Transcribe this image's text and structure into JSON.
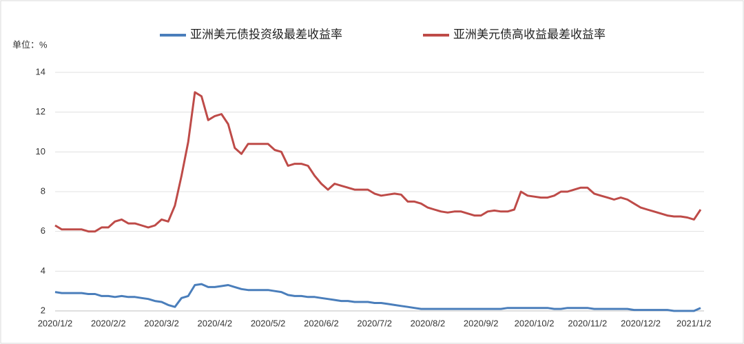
{
  "chart_data": {
    "type": "line",
    "y_unit_label": "单位：%",
    "categories": [
      "2020/1/2",
      null,
      null,
      null,
      null,
      null,
      null,
      null,
      "2020/2/2",
      null,
      null,
      null,
      null,
      null,
      null,
      null,
      "2020/3/2",
      null,
      null,
      null,
      null,
      null,
      null,
      null,
      "2020/4/2",
      null,
      null,
      null,
      null,
      null,
      null,
      null,
      "2020/5/2",
      null,
      null,
      null,
      null,
      null,
      null,
      null,
      "2020/6/2",
      null,
      null,
      null,
      null,
      null,
      null,
      null,
      "2020/7/2",
      null,
      null,
      null,
      null,
      null,
      null,
      null,
      "2020/8/2",
      null,
      null,
      null,
      null,
      null,
      null,
      null,
      "2020/9/2",
      null,
      null,
      null,
      null,
      null,
      null,
      null,
      "2020/10/2",
      null,
      null,
      null,
      null,
      null,
      null,
      null,
      "2020/11/2",
      null,
      null,
      null,
      null,
      null,
      null,
      null,
      "2020/12/2",
      null,
      null,
      null,
      null,
      null,
      null,
      null,
      "2021/1/2",
      null
    ],
    "series": [
      {
        "name": "亚洲美元债投资级最差收益率",
        "color": "#4a7ebb",
        "values": [
          2.95,
          2.9,
          2.9,
          2.9,
          2.9,
          2.85,
          2.85,
          2.75,
          2.75,
          2.7,
          2.75,
          2.7,
          2.7,
          2.65,
          2.6,
          2.5,
          2.45,
          2.3,
          2.2,
          2.65,
          2.75,
          3.3,
          3.35,
          3.2,
          3.2,
          3.25,
          3.3,
          3.2,
          3.1,
          3.05,
          3.05,
          3.05,
          3.05,
          3.0,
          2.95,
          2.8,
          2.75,
          2.75,
          2.7,
          2.7,
          2.65,
          2.6,
          2.55,
          2.5,
          2.5,
          2.45,
          2.45,
          2.45,
          2.4,
          2.4,
          2.35,
          2.3,
          2.25,
          2.2,
          2.15,
          2.1,
          2.1,
          2.1,
          2.1,
          2.1,
          2.1,
          2.1,
          2.1,
          2.1,
          2.1,
          2.1,
          2.1,
          2.1,
          2.15,
          2.15,
          2.15,
          2.15,
          2.15,
          2.15,
          2.15,
          2.1,
          2.1,
          2.15,
          2.15,
          2.15,
          2.15,
          2.1,
          2.1,
          2.1,
          2.1,
          2.1,
          2.1,
          2.05,
          2.05,
          2.05,
          2.05,
          2.05,
          2.05,
          2.0,
          2.0,
          2.0,
          2.0,
          2.15
        ]
      },
      {
        "name": "亚洲美元债高收益最差收益率",
        "color": "#be4b48",
        "values": [
          6.3,
          6.1,
          6.1,
          6.1,
          6.1,
          6.0,
          6.0,
          6.2,
          6.2,
          6.5,
          6.6,
          6.4,
          6.4,
          6.3,
          6.2,
          6.3,
          6.6,
          6.5,
          7.3,
          8.8,
          10.5,
          13.0,
          12.8,
          11.6,
          11.8,
          11.9,
          11.4,
          10.2,
          9.9,
          10.4,
          10.4,
          10.4,
          10.4,
          10.1,
          10.0,
          9.3,
          9.4,
          9.4,
          9.3,
          8.8,
          8.4,
          8.1,
          8.4,
          8.3,
          8.2,
          8.1,
          8.1,
          8.1,
          7.9,
          7.8,
          7.85,
          7.9,
          7.85,
          7.5,
          7.5,
          7.4,
          7.2,
          7.1,
          7.0,
          6.95,
          7.0,
          7.0,
          6.9,
          6.8,
          6.8,
          7.0,
          7.05,
          7.0,
          7.0,
          7.1,
          8.0,
          7.8,
          7.75,
          7.7,
          7.7,
          7.8,
          8.0,
          8.0,
          8.1,
          8.2,
          8.2,
          7.9,
          7.8,
          7.7,
          7.6,
          7.7,
          7.6,
          7.4,
          7.2,
          7.1,
          7.0,
          6.9,
          6.8,
          6.75,
          6.75,
          6.7,
          6.6,
          7.1
        ]
      }
    ],
    "ylim": [
      2,
      14
    ],
    "yticks": [
      2,
      4,
      6,
      8,
      10,
      12,
      14
    ],
    "grid": true
  }
}
